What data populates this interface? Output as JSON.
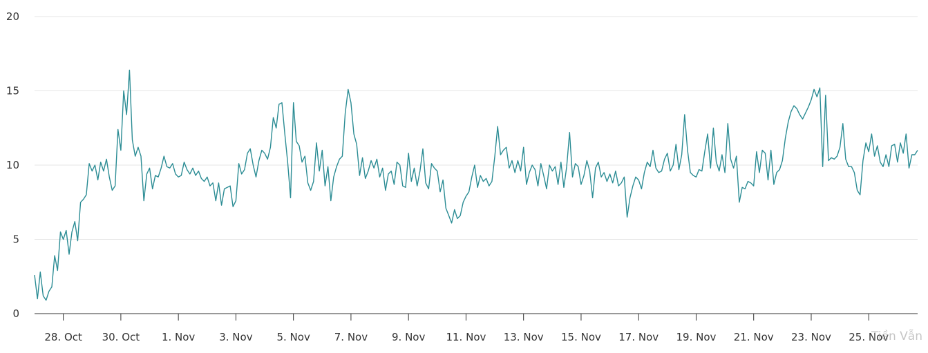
{
  "chart_data": {
    "type": "line",
    "title": "",
    "xlabel": "",
    "ylabel": "",
    "ylim": [
      0,
      20
    ],
    "y_ticks": [
      0,
      5,
      10,
      15,
      20
    ],
    "x_ticks": [
      "28. Oct",
      "30. Oct",
      "1. Nov",
      "3. Nov",
      "5. Nov",
      "7. Nov",
      "9. Nov",
      "11. Nov",
      "13. Nov",
      "15. Nov",
      "17. Nov",
      "19. Nov",
      "21. Nov",
      "23. Nov",
      "25. Nov"
    ],
    "x_tick_days": [
      1,
      3,
      5,
      7,
      9,
      11,
      13,
      15,
      17,
      19,
      21,
      23,
      25,
      27,
      29
    ],
    "xlim_days": [
      0,
      30.7
    ],
    "grid": "horizontal",
    "color": "#2b8c94",
    "series": [
      {
        "x_days": [
          0.0,
          0.1,
          0.2,
          0.3,
          0.4,
          0.5,
          0.6,
          0.7,
          0.8,
          0.9,
          1.0,
          1.1,
          1.2,
          1.3,
          1.4,
          1.5,
          1.6,
          1.7,
          1.8,
          1.9,
          2.0,
          2.1,
          2.2,
          2.3,
          2.4,
          2.5,
          2.6,
          2.7,
          2.8,
          2.9,
          3.0,
          3.1,
          3.2,
          3.3,
          3.4,
          3.5,
          3.6,
          3.7,
          3.8,
          3.9,
          4.0,
          4.1,
          4.2,
          4.3,
          4.4,
          4.5,
          4.6,
          4.7,
          4.8,
          4.9,
          5.0,
          5.1,
          5.2,
          5.3,
          5.4,
          5.5,
          5.6,
          5.7,
          5.8,
          5.9,
          6.0,
          6.1,
          6.2,
          6.3,
          6.4,
          6.5,
          6.6,
          6.7,
          6.8,
          6.9,
          7.0,
          7.1,
          7.2,
          7.3,
          7.4,
          7.5,
          7.6,
          7.7,
          7.8,
          7.9,
          8.0,
          8.1,
          8.2,
          8.3,
          8.4,
          8.5,
          8.6,
          8.7,
          8.8,
          8.9,
          9.0,
          9.1,
          9.2,
          9.3,
          9.4,
          9.5,
          9.6,
          9.7,
          9.8,
          9.9,
          10.0,
          10.1,
          10.2,
          10.3,
          10.4,
          10.5,
          10.6,
          10.7,
          10.8,
          10.9,
          11.0,
          11.1,
          11.2,
          11.3,
          11.4,
          11.5,
          11.6,
          11.7,
          11.8,
          11.9,
          12.0,
          12.1,
          12.2,
          12.3,
          12.4,
          12.5,
          12.6,
          12.7,
          12.8,
          12.9,
          13.0,
          13.1,
          13.2,
          13.3,
          13.4,
          13.5,
          13.6,
          13.7,
          13.8,
          13.9,
          14.0,
          14.1,
          14.2,
          14.3,
          14.4,
          14.5,
          14.6,
          14.7,
          14.8,
          14.9,
          15.0,
          15.1,
          15.2,
          15.3,
          15.4,
          15.5,
          15.6,
          15.7,
          15.8,
          15.9,
          16.0,
          16.1,
          16.2,
          16.3,
          16.4,
          16.5,
          16.6,
          16.7,
          16.8,
          16.9,
          17.0,
          17.1,
          17.2,
          17.3,
          17.4,
          17.5,
          17.6,
          17.7,
          17.8,
          17.9,
          18.0,
          18.1,
          18.2,
          18.3,
          18.4,
          18.5,
          18.6,
          18.7,
          18.8,
          18.9,
          19.0,
          19.1,
          19.2,
          19.3,
          19.4,
          19.5,
          19.6,
          19.7,
          19.8,
          19.9,
          20.0,
          20.1,
          20.2,
          20.3,
          20.4,
          20.5,
          20.6,
          20.7,
          20.8,
          20.9,
          21.0,
          21.1,
          21.2,
          21.3,
          21.4,
          21.5,
          21.6,
          21.7,
          21.8,
          21.9,
          22.0,
          22.1,
          22.2,
          22.3,
          22.4,
          22.5,
          22.6,
          22.7,
          22.8,
          22.9,
          23.0,
          23.1,
          23.2,
          23.3,
          23.4,
          23.5,
          23.6,
          23.7,
          23.8,
          23.9,
          24.0,
          24.1,
          24.2,
          24.3,
          24.4,
          24.5,
          24.6,
          24.7,
          24.8,
          24.9,
          25.0,
          25.1,
          25.2,
          25.3,
          25.4,
          25.5,
          25.6,
          25.7,
          25.8,
          25.9,
          26.0,
          26.1,
          26.2,
          26.3,
          26.4,
          26.5,
          26.6,
          26.7,
          26.8,
          26.9,
          27.0,
          27.1,
          27.2,
          27.3,
          27.4,
          27.5,
          27.6,
          27.7,
          27.8,
          27.9,
          28.0,
          28.1,
          28.2,
          28.3,
          28.4,
          28.5,
          28.6,
          28.7,
          28.8,
          28.9,
          29.0,
          29.1,
          29.2,
          29.3,
          29.4,
          29.5,
          29.6,
          29.7,
          29.8,
          29.9,
          30.0,
          30.1,
          30.2,
          30.3,
          30.4,
          30.5,
          30.6,
          30.7
        ],
        "values": [
          2.6,
          1.0,
          2.8,
          1.2,
          0.9,
          1.5,
          1.8,
          3.9,
          2.9,
          5.5,
          5.0,
          5.6,
          4.0,
          5.5,
          6.2,
          4.9,
          7.5,
          7.7,
          8.0,
          10.1,
          9.6,
          10.0,
          9.0,
          10.2,
          9.6,
          10.4,
          9.2,
          8.3,
          8.6,
          12.4,
          11.0,
          15.0,
          13.4,
          16.4,
          11.7,
          10.6,
          11.2,
          10.6,
          7.6,
          9.4,
          9.8,
          8.4,
          9.3,
          9.2,
          9.8,
          10.6,
          9.9,
          9.8,
          10.1,
          9.4,
          9.2,
          9.3,
          10.2,
          9.7,
          9.4,
          9.8,
          9.3,
          9.6,
          9.1,
          8.9,
          9.2,
          8.6,
          8.8,
          7.6,
          8.8,
          7.3,
          8.4,
          8.5,
          8.6,
          7.2,
          7.6,
          10.1,
          9.4,
          9.7,
          10.8,
          11.1,
          10.0,
          9.2,
          10.3,
          11.0,
          10.8,
          10.4,
          11.2,
          13.2,
          12.5,
          14.1,
          14.2,
          12.1,
          10.2,
          7.8,
          14.2,
          11.6,
          11.3,
          10.2,
          10.6,
          8.8,
          8.3,
          8.9,
          11.5,
          9.6,
          11.0,
          8.6,
          9.9,
          7.6,
          9.2,
          9.9,
          10.4,
          10.6,
          13.5,
          15.1,
          14.2,
          12.1,
          11.4,
          9.3,
          10.5,
          9.1,
          9.6,
          10.3,
          9.8,
          10.4,
          9.2,
          9.8,
          8.3,
          9.4,
          9.6,
          8.7,
          10.2,
          10.0,
          8.6,
          8.5,
          10.8,
          8.9,
          9.8,
          8.6,
          9.6,
          11.1,
          8.8,
          8.4,
          10.1,
          9.8,
          9.6,
          8.2,
          9.0,
          7.1,
          6.6,
          6.1,
          7.0,
          6.4,
          6.6,
          7.5,
          7.9,
          8.2,
          9.2,
          10.0,
          8.5,
          9.3,
          8.9,
          9.1,
          8.6,
          8.9,
          10.6,
          12.6,
          10.7,
          11.0,
          11.2,
          9.8,
          10.3,
          9.5,
          10.3,
          9.6,
          11.2,
          8.7,
          9.5,
          10.0,
          9.7,
          8.6,
          10.1,
          9.3,
          8.4,
          10.0,
          9.6,
          9.9,
          8.7,
          10.2,
          8.5,
          9.9,
          12.2,
          9.2,
          10.1,
          9.9,
          8.7,
          9.3,
          10.3,
          9.6,
          7.8,
          9.8,
          10.2,
          9.2,
          9.5,
          8.9,
          9.4,
          8.8,
          9.6,
          8.6,
          8.8,
          9.2,
          6.5,
          7.8,
          8.6,
          9.2,
          9.0,
          8.4,
          9.5,
          10.2,
          9.9,
          11.0,
          9.8,
          9.5,
          9.6,
          10.4,
          10.8,
          9.6,
          10.0,
          11.4,
          9.7,
          10.7,
          13.4,
          11.0,
          9.5,
          9.3,
          9.2,
          9.7,
          9.6,
          10.9,
          12.1,
          9.8,
          12.5,
          10.2,
          9.6,
          10.7,
          9.5,
          12.8,
          10.4,
          9.8,
          10.6,
          7.5,
          8.5,
          8.4,
          8.9,
          8.8,
          8.6,
          10.9,
          9.5,
          11.0,
          10.8,
          9.0,
          11.0,
          8.7,
          9.5,
          9.7,
          10.3,
          11.8,
          12.9,
          13.6,
          14.0,
          13.8,
          13.4,
          13.1,
          13.5,
          13.9,
          14.4,
          15.1,
          14.6,
          15.2,
          9.9,
          14.7,
          10.3,
          10.5,
          10.4,
          10.6,
          11.2,
          12.8,
          10.4,
          9.9,
          9.9,
          9.5,
          8.3,
          8.0,
          10.3,
          11.5,
          10.9,
          12.1,
          10.6,
          11.3,
          10.2,
          9.9,
          10.7,
          9.9,
          11.3,
          11.4,
          10.2,
          11.5,
          10.8,
          12.1,
          9.8,
          10.7,
          10.7,
          11.0
        ]
      }
    ],
    "watermark": "Tiền Vẫn"
  }
}
